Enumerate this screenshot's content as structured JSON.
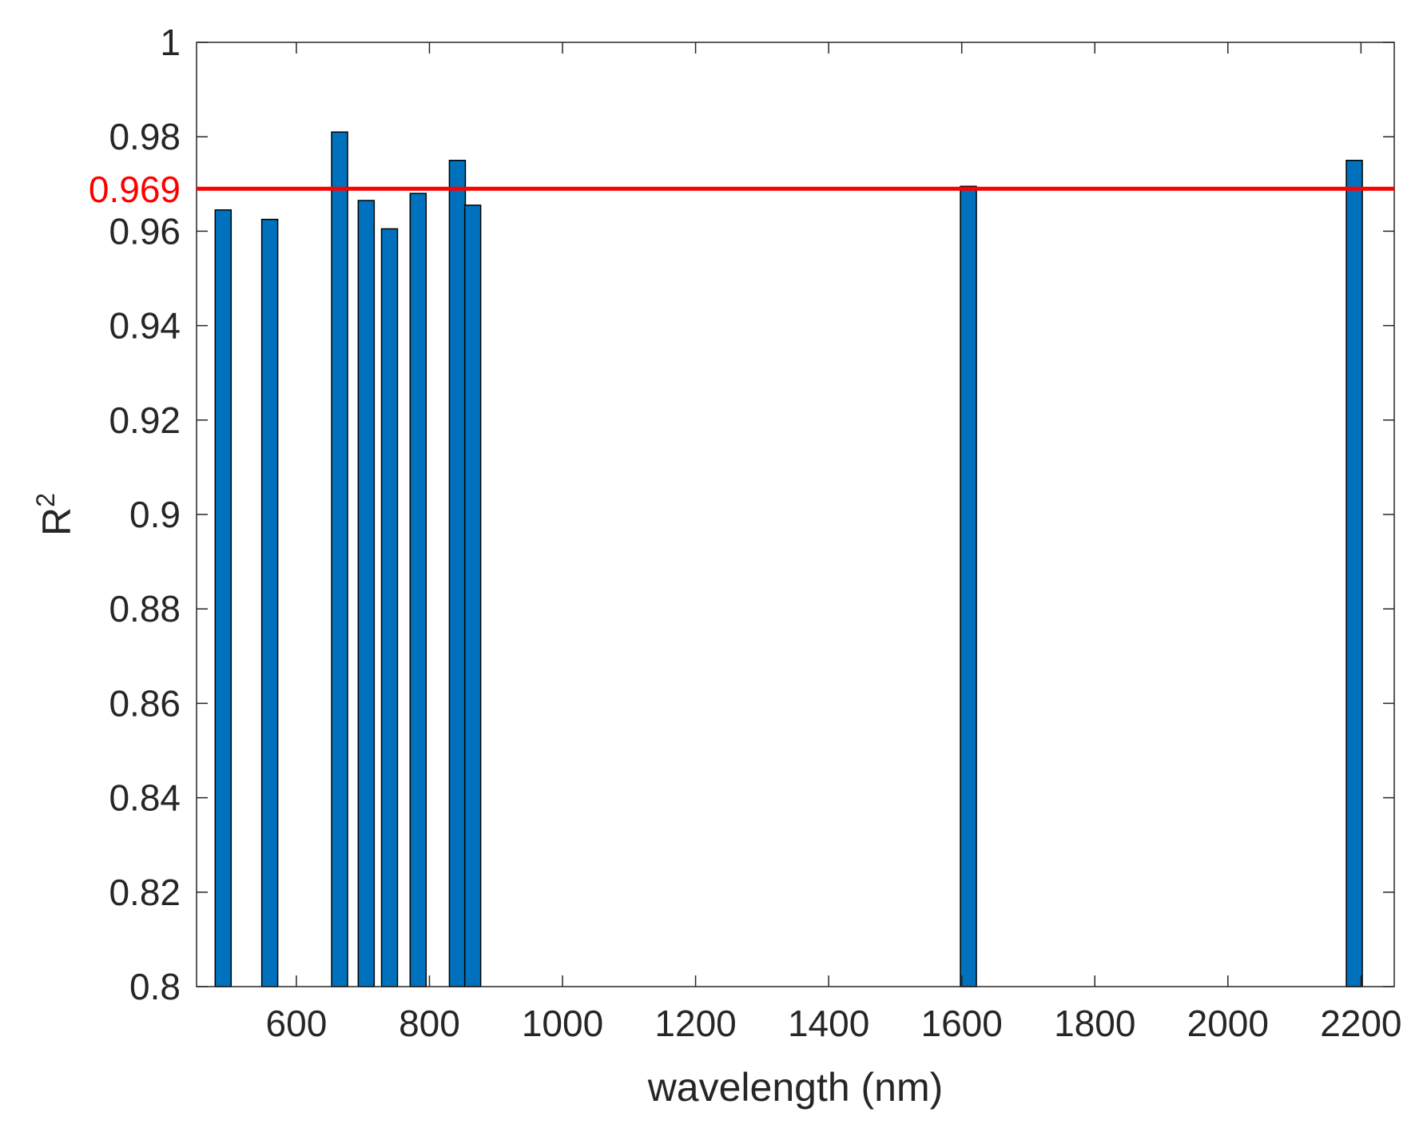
{
  "chart_data": {
    "type": "bar",
    "title": "",
    "xlabel": "wavelength (nm)",
    "ylabel": "R",
    "ylabel_superscript": "2",
    "xlim": [
      450,
      2250
    ],
    "ylim": [
      0.8,
      1.0
    ],
    "xticks": [
      600,
      800,
      1000,
      1200,
      1400,
      1600,
      1800,
      2000,
      2200
    ],
    "xtick_labels": [
      "600",
      "800",
      "1000",
      "1200",
      "1400",
      "1600",
      "1800",
      "2000",
      "2200"
    ],
    "yticks": [
      0.8,
      0.82,
      0.84,
      0.86,
      0.88,
      0.9,
      0.92,
      0.94,
      0.96,
      0.98,
      1.0
    ],
    "ytick_labels": [
      "0.8",
      "0.82",
      "0.84",
      "0.86",
      "0.88",
      "0.9",
      "0.92",
      "0.94",
      "0.96",
      "0.98",
      "1"
    ],
    "grid": false,
    "bar_color": "#0072BD",
    "x": [
      490,
      560,
      665,
      705,
      740,
      783,
      842,
      865,
      1610,
      2190
    ],
    "values": [
      0.9645,
      0.9625,
      0.981,
      0.9665,
      0.9605,
      0.968,
      0.975,
      0.9655,
      0.9695,
      0.975
    ],
    "reference_line": {
      "value": 0.969,
      "label": "0.969",
      "color": "#FF0000"
    }
  }
}
